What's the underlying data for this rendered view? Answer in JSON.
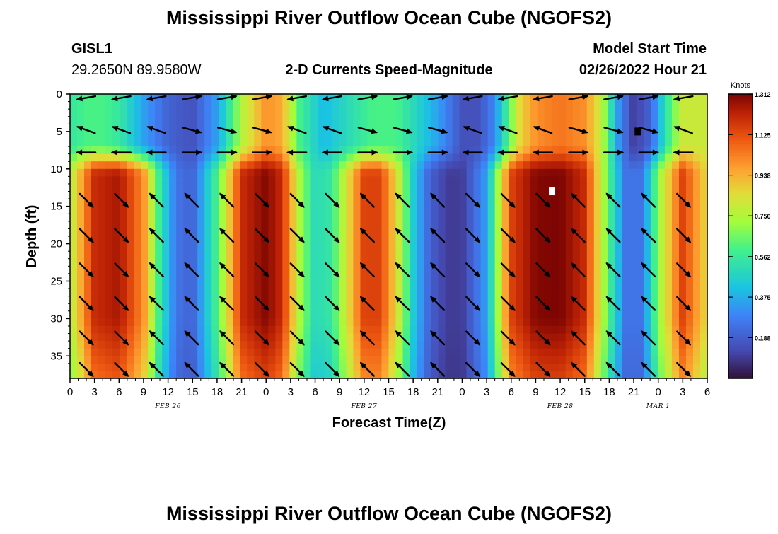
{
  "header": {
    "title": "Mississippi River Outflow Ocean Cube (NGOFS2)",
    "station_id": "GISL1",
    "station_coords": "29.2650N  89.9580W",
    "product": "2-D Currents Speed-Magnitude",
    "model_start_label": "Model Start Time",
    "model_start_value": "02/26/2022 Hour 21"
  },
  "footer": {
    "title": "Mississippi River Outflow Ocean Cube (NGOFS2)"
  },
  "chart_data": {
    "type": "heatmap",
    "title": "2-D Currents Speed-Magnitude",
    "xlabel": "Forecast Time(Z)",
    "ylabel": "Depth (ft)",
    "x_range_hours": [
      0,
      78
    ],
    "x_tick_labels": [
      "0",
      "3",
      "6",
      "9",
      "12",
      "15",
      "18",
      "21",
      "0",
      "3",
      "6",
      "9",
      "12",
      "15",
      "18",
      "21",
      "0",
      "3",
      "6",
      "9",
      "12",
      "15",
      "18",
      "21",
      "0",
      "3",
      "6"
    ],
    "date_labels": [
      {
        "text": "FEB 26",
        "hour": 12
      },
      {
        "text": "FEB 27",
        "hour": 36
      },
      {
        "text": "FEB 28",
        "hour": 60
      },
      {
        "text": "MAR 1",
        "hour": 72
      }
    ],
    "y_range_ft": [
      0,
      38
    ],
    "y_ticks": [
      0,
      5,
      10,
      15,
      20,
      25,
      30,
      35
    ],
    "colorbar": {
      "unit": "Knots",
      "min": 0.0,
      "max": 1.312,
      "tick_labels": [
        "1.312",
        "1.125",
        "0.938",
        "0.750",
        "0.562",
        "0.375",
        "0.188"
      ]
    },
    "surface_speed_by_hour": [
      [
        0,
        0.55
      ],
      [
        2,
        0.6
      ],
      [
        4,
        0.6
      ],
      [
        6,
        0.55
      ],
      [
        9,
        0.35
      ],
      [
        12,
        0.2
      ],
      [
        15,
        0.15
      ],
      [
        18,
        0.35
      ],
      [
        21,
        0.75
      ],
      [
        24,
        1.0
      ],
      [
        26,
        0.95
      ],
      [
        28,
        0.6
      ],
      [
        31,
        0.4
      ],
      [
        34,
        0.5
      ],
      [
        37,
        0.6
      ],
      [
        40,
        0.6
      ],
      [
        43,
        0.45
      ],
      [
        45,
        0.35
      ],
      [
        48,
        0.15
      ],
      [
        50,
        0.15
      ],
      [
        52,
        0.3
      ],
      [
        55,
        0.85
      ],
      [
        57,
        1.0
      ],
      [
        60,
        1.05
      ],
      [
        63,
        1.0
      ],
      [
        65,
        0.8
      ],
      [
        67,
        0.35
      ],
      [
        69,
        0.1
      ],
      [
        71,
        0.2
      ],
      [
        73,
        0.55
      ],
      [
        75,
        0.8
      ],
      [
        78,
        0.8
      ]
    ],
    "deep_speed_by_hour": [
      [
        0,
        0.75
      ],
      [
        3,
        1.2
      ],
      [
        6,
        1.25
      ],
      [
        9,
        1.0
      ],
      [
        11,
        0.55
      ],
      [
        13,
        0.25
      ],
      [
        15,
        0.2
      ],
      [
        18,
        0.6
      ],
      [
        21,
        1.2
      ],
      [
        24,
        1.3
      ],
      [
        26,
        1.2
      ],
      [
        28,
        0.75
      ],
      [
        30,
        0.5
      ],
      [
        32,
        0.55
      ],
      [
        34,
        0.85
      ],
      [
        36,
        1.15
      ],
      [
        38,
        1.15
      ],
      [
        40,
        0.85
      ],
      [
        42,
        0.45
      ],
      [
        44,
        0.2
      ],
      [
        46,
        0.1
      ],
      [
        48,
        0.1
      ],
      [
        51,
        0.35
      ],
      [
        54,
        1.15
      ],
      [
        57,
        1.3
      ],
      [
        60,
        1.31
      ],
      [
        63,
        1.2
      ],
      [
        66,
        0.6
      ],
      [
        68,
        0.25
      ],
      [
        70,
        0.25
      ],
      [
        72,
        0.7
      ],
      [
        75,
        1.15
      ],
      [
        78,
        0.85
      ]
    ],
    "markers": [
      {
        "hour": 59.0,
        "depth_ft": 13,
        "color": "#ffffff"
      },
      {
        "hour": 69.5,
        "depth_ft": 5,
        "color": "#000000"
      }
    ]
  }
}
